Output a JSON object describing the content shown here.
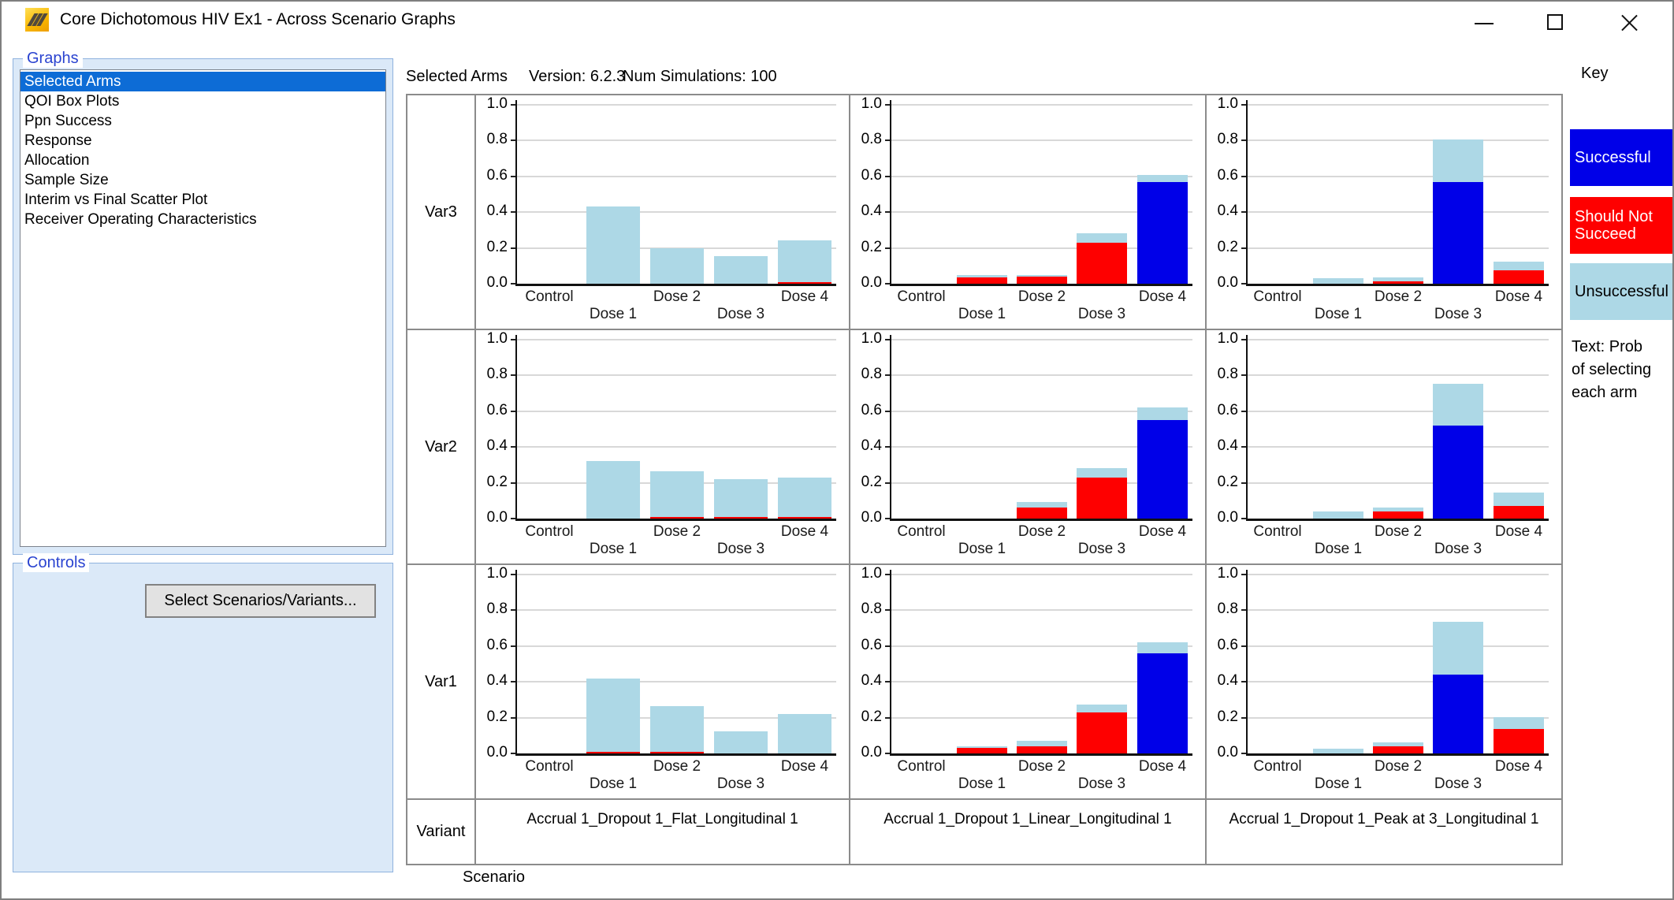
{
  "window": {
    "title": "Core Dichotomous HIV Ex1 - Across Scenario Graphs",
    "icons": [
      "app-icon",
      "minimize-icon",
      "maximize-icon",
      "close-icon"
    ]
  },
  "sidebar": {
    "graphs_label": "Graphs",
    "items": [
      {
        "label": "Selected Arms",
        "selected": true
      },
      {
        "label": "QOI Box Plots",
        "selected": false
      },
      {
        "label": "Ppn Success",
        "selected": false
      },
      {
        "label": "Response",
        "selected": false
      },
      {
        "label": "Allocation",
        "selected": false
      },
      {
        "label": "Sample Size",
        "selected": false
      },
      {
        "label": "Interim vs Final Scatter Plot",
        "selected": false
      },
      {
        "label": "Receiver Operating Characteristics",
        "selected": false
      }
    ],
    "controls_label": "Controls",
    "select_button": "Select Scenarios/Variants..."
  },
  "header": {
    "title": "Selected Arms",
    "version": "Version: 6.2.3",
    "num_simulations": "Num Simulations: 100"
  },
  "key": {
    "label": "Key",
    "entries": [
      {
        "label": "Successful",
        "color": "#0000E8",
        "text_color": "#FFFFFF"
      },
      {
        "label": "Should Not Succeed",
        "color": "#FE0000",
        "text_color": "#FFFFFF"
      },
      {
        "label": "Unsuccessful",
        "color": "#ADD8E6",
        "text_color": "#000000"
      }
    ],
    "note": "Text: Prob of selecting each arm"
  },
  "table": {
    "variant_label": "Variant",
    "scenario_label": "Scenario"
  },
  "chart_data": {
    "type": "bar",
    "stacked": true,
    "title": "Selected Arms",
    "categories": [
      "Control",
      "Dose 1",
      "Dose 2",
      "Dose 3",
      "Dose 4"
    ],
    "ylim": [
      0,
      1
    ],
    "yticks": [
      "0.0",
      "0.2",
      "0.4",
      "0.6",
      "0.8",
      "1.0"
    ],
    "grid": true,
    "row_labels": [
      "Var3",
      "Var2",
      "Var1"
    ],
    "col_labels": [
      "Accrual 1_Dropout 1_Flat_Longitudinal 1",
      "Accrual 1_Dropout 1_Linear_Longitudinal 1",
      "Accrual 1_Dropout 1_Peak at 3_Longitudinal 1"
    ],
    "series_order": [
      "successful",
      "should_not_succeed",
      "unsuccessful"
    ],
    "colors": {
      "successful": "#0000E8",
      "should_not_succeed": "#FE0000",
      "unsuccessful": "#ADD8E6"
    },
    "cells": [
      {
        "row": 0,
        "col": 0,
        "series": {
          "successful": [
            0,
            0,
            0,
            0,
            0
          ],
          "should_not_succeed": [
            0,
            0,
            0,
            0,
            0.01
          ],
          "unsuccessful": [
            0,
            0.43,
            0.2,
            0.155,
            0.235
          ]
        }
      },
      {
        "row": 0,
        "col": 1,
        "series": {
          "successful": [
            0,
            0,
            0,
            0,
            0.57
          ],
          "should_not_succeed": [
            0,
            0.035,
            0.04,
            0.23,
            0
          ],
          "unsuccessful": [
            0,
            0.015,
            0.01,
            0.055,
            0.04
          ]
        }
      },
      {
        "row": 0,
        "col": 2,
        "series": {
          "successful": [
            0,
            0,
            0,
            0.57,
            0
          ],
          "should_not_succeed": [
            0,
            0,
            0.015,
            0,
            0.075
          ],
          "unsuccessful": [
            0,
            0.03,
            0.02,
            0.24,
            0.05
          ]
        }
      },
      {
        "row": 1,
        "col": 0,
        "series": {
          "successful": [
            0,
            0,
            0,
            0,
            0
          ],
          "should_not_succeed": [
            0,
            0,
            0.01,
            0.01,
            0.01
          ],
          "unsuccessful": [
            0,
            0.32,
            0.255,
            0.21,
            0.22
          ]
        }
      },
      {
        "row": 1,
        "col": 1,
        "series": {
          "successful": [
            0,
            0,
            0,
            0,
            0.55
          ],
          "should_not_succeed": [
            0,
            0,
            0.06,
            0.23,
            0
          ],
          "unsuccessful": [
            0,
            0,
            0.03,
            0.055,
            0.07
          ]
        }
      },
      {
        "row": 1,
        "col": 2,
        "series": {
          "successful": [
            0,
            0,
            0,
            0.52,
            0
          ],
          "should_not_succeed": [
            0,
            0,
            0.04,
            0,
            0.07
          ],
          "unsuccessful": [
            0,
            0.04,
            0.02,
            0.235,
            0.075
          ]
        }
      },
      {
        "row": 2,
        "col": 0,
        "series": {
          "successful": [
            0,
            0,
            0,
            0,
            0
          ],
          "should_not_succeed": [
            0,
            0.01,
            0.01,
            0,
            0
          ],
          "unsuccessful": [
            0,
            0.41,
            0.255,
            0.125,
            0.22
          ]
        }
      },
      {
        "row": 2,
        "col": 1,
        "series": {
          "successful": [
            0,
            0,
            0,
            0,
            0.56
          ],
          "should_not_succeed": [
            0,
            0.03,
            0.04,
            0.23,
            0
          ],
          "unsuccessful": [
            0,
            0.005,
            0.03,
            0.045,
            0.06
          ]
        }
      },
      {
        "row": 2,
        "col": 2,
        "series": {
          "successful": [
            0,
            0,
            0,
            0.44,
            0
          ],
          "should_not_succeed": [
            0,
            0,
            0.04,
            0,
            0.135
          ],
          "unsuccessful": [
            0,
            0.025,
            0.02,
            0.295,
            0.065
          ]
        }
      }
    ]
  }
}
